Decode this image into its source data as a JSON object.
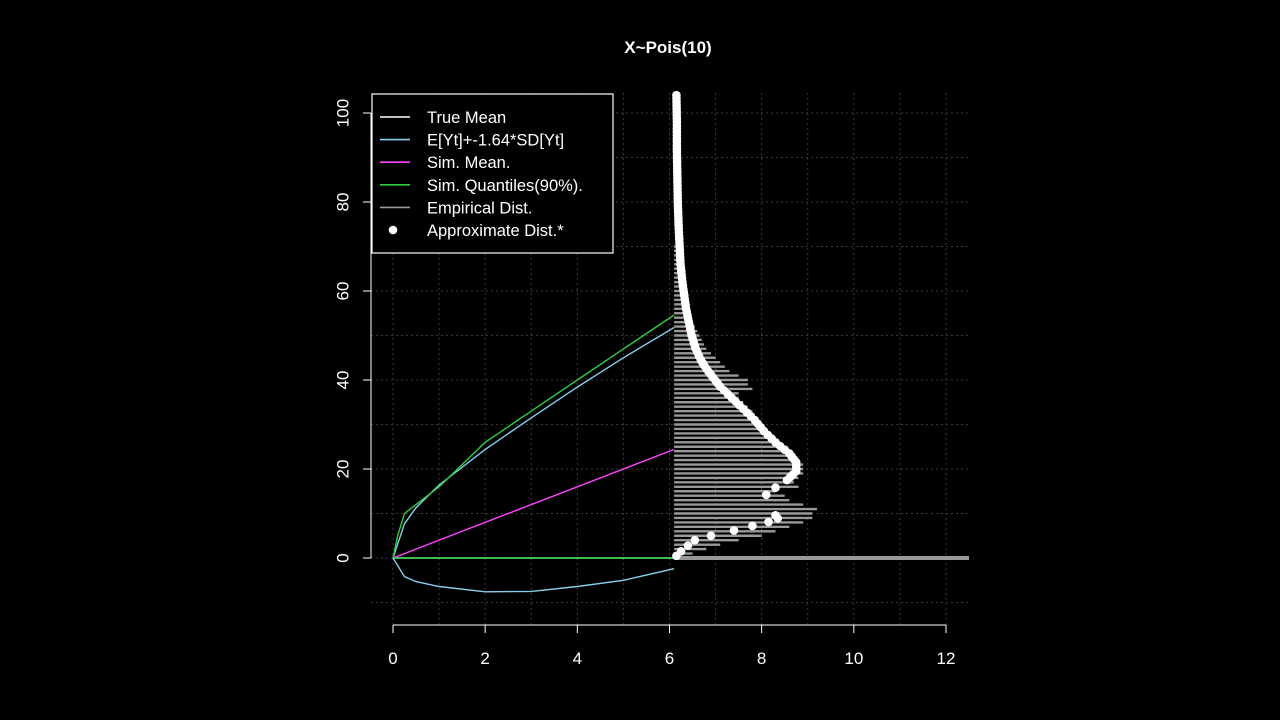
{
  "chart_data": {
    "type": "line",
    "title": "X~Pois(10)",
    "xlabel": "",
    "ylabel": "",
    "xlim": [
      0,
      12.5
    ],
    "ylim": [
      -15,
      105
    ],
    "x_ticks": [
      0,
      2,
      4,
      6,
      8,
      10,
      12
    ],
    "y_ticks": [
      0,
      20,
      40,
      60,
      80,
      100
    ],
    "grid": true,
    "legend_position": "top-left",
    "legend": [
      {
        "label": "True Mean",
        "color": "#ffffff",
        "kind": "line"
      },
      {
        "label": "E[Yt]+-1.64*SD[Yt]",
        "color": "#87ceeb",
        "kind": "line"
      },
      {
        "label": "Sim. Mean.",
        "color": "#ff44ff",
        "kind": "line"
      },
      {
        "label": "Sim. Quantiles(90%).",
        "color": "#2ecc40",
        "kind": "line"
      },
      {
        "label": "Empirical Dist.",
        "color": "#999999",
        "kind": "line"
      },
      {
        "label": "Approximate Dist.*",
        "color": "#ffffff",
        "kind": "point"
      }
    ],
    "time_horizon": [
      0,
      6.1
    ],
    "series": [
      {
        "name": "True Mean",
        "color": "#ffffff",
        "x": [
          0,
          6.1
        ],
        "y": [
          0,
          0
        ]
      },
      {
        "name": "Sim. Mean.",
        "color": "#ff44ff",
        "x": [
          0,
          6.1
        ],
        "y": [
          0,
          24.4
        ]
      },
      {
        "name": "Sim. Quantiles(90%).",
        "color": "#2ecc40",
        "x": [
          0,
          6.1
        ],
        "y": [
          0,
          0
        ]
      },
      {
        "name": "E[Yt]+-1.64*SD[Yt] upper",
        "color": "#87ceeb",
        "x": [
          0,
          0.25,
          0.5,
          1,
          2,
          3,
          4,
          5,
          6.1
        ],
        "y": [
          0,
          7.7,
          11.3,
          16.4,
          24.4,
          31.5,
          38.4,
          45,
          51.8
        ]
      },
      {
        "name": "E[Yt]+-1.64*SD[Yt] lower",
        "color": "#87ceeb",
        "x": [
          0,
          0.25,
          0.5,
          1,
          2,
          3,
          4,
          5,
          6.1
        ],
        "y": [
          0,
          -4.2,
          -5.3,
          -6.4,
          -7.6,
          -7.5,
          -6.4,
          -5,
          -2.4
        ]
      },
      {
        "name": "Sim. Quantiles(90%). upper",
        "color": "#2ecc40",
        "x": [
          0,
          0.1,
          0.25,
          0.5,
          1,
          1.5,
          2,
          3,
          4,
          5,
          6.1
        ],
        "y": [
          0,
          5,
          10,
          12,
          16,
          21,
          26,
          33,
          40,
          47,
          54.6
        ]
      }
    ],
    "empirical_dist": {
      "color": "#999999",
      "y": [
        0,
        1,
        2,
        3,
        4,
        5,
        6,
        7,
        8,
        9,
        10,
        11,
        12,
        13,
        14,
        15,
        16,
        17,
        18,
        19,
        20,
        21,
        22,
        23,
        24,
        25,
        26,
        27,
        28,
        29,
        30,
        31,
        32,
        33,
        34,
        35,
        36,
        37,
        38,
        39,
        40,
        41,
        42,
        43,
        44,
        45,
        46,
        47,
        48,
        49,
        50,
        51,
        52,
        53,
        54,
        55,
        56,
        57,
        58,
        59,
        60,
        61,
        62,
        63,
        64,
        65,
        66,
        67,
        68,
        69,
        70
      ],
      "x_end": [
        12.5,
        6.5,
        6.8,
        7.1,
        7.5,
        8,
        8.3,
        8.6,
        8.9,
        9.1,
        9.1,
        9.2,
        8.9,
        8.6,
        8.5,
        8.3,
        8.8,
        8.7,
        8.8,
        8.9,
        8.9,
        8.9,
        8.8,
        8.7,
        8.6,
        8.5,
        8.4,
        8.3,
        8.2,
        8.1,
        8.0,
        7.9,
        7.8,
        7.8,
        7.7,
        7.6,
        7.5,
        7.5,
        7.8,
        7.7,
        7.7,
        7.5,
        7.3,
        7.2,
        7.1,
        7.0,
        6.9,
        6.8,
        6.75,
        6.7,
        6.65,
        6.6,
        6.55,
        6.5,
        6.45,
        6.4,
        6.38,
        6.36,
        6.34,
        6.32,
        6.3,
        6.29,
        6.28,
        6.27,
        6.26,
        6.25,
        6.24,
        6.23,
        6.22,
        6.21,
        6.2
      ]
    },
    "approximate_dist": {
      "color": "#ffffff",
      "x": [
        6.15,
        6.25,
        6.4,
        6.55,
        6.9,
        7.4,
        7.8,
        8.15,
        8.35,
        8.3,
        8.1,
        8.3,
        8.55,
        8.75,
        8.75,
        8.6,
        8.3,
        8.05,
        7.85,
        7.6,
        7.35,
        7.1,
        6.95,
        6.8,
        6.68,
        6.57,
        6.48,
        6.42,
        6.36,
        6.32,
        6.28,
        6.24,
        6.22,
        6.2,
        6.18,
        6.17,
        6.16,
        6.16,
        6.15
      ],
      "y": [
        0.5,
        1.5,
        2.8,
        4,
        5,
        6.2,
        7.2,
        8.1,
        8.9,
        9.6,
        14.2,
        15.8,
        17.5,
        19.5,
        21.5,
        23.5,
        26,
        28.5,
        31,
        33.5,
        36,
        38.5,
        40.5,
        42.5,
        44.5,
        47,
        50,
        53,
        56,
        59,
        62,
        66,
        70,
        74,
        80,
        86,
        92,
        98,
        104
      ]
    }
  }
}
